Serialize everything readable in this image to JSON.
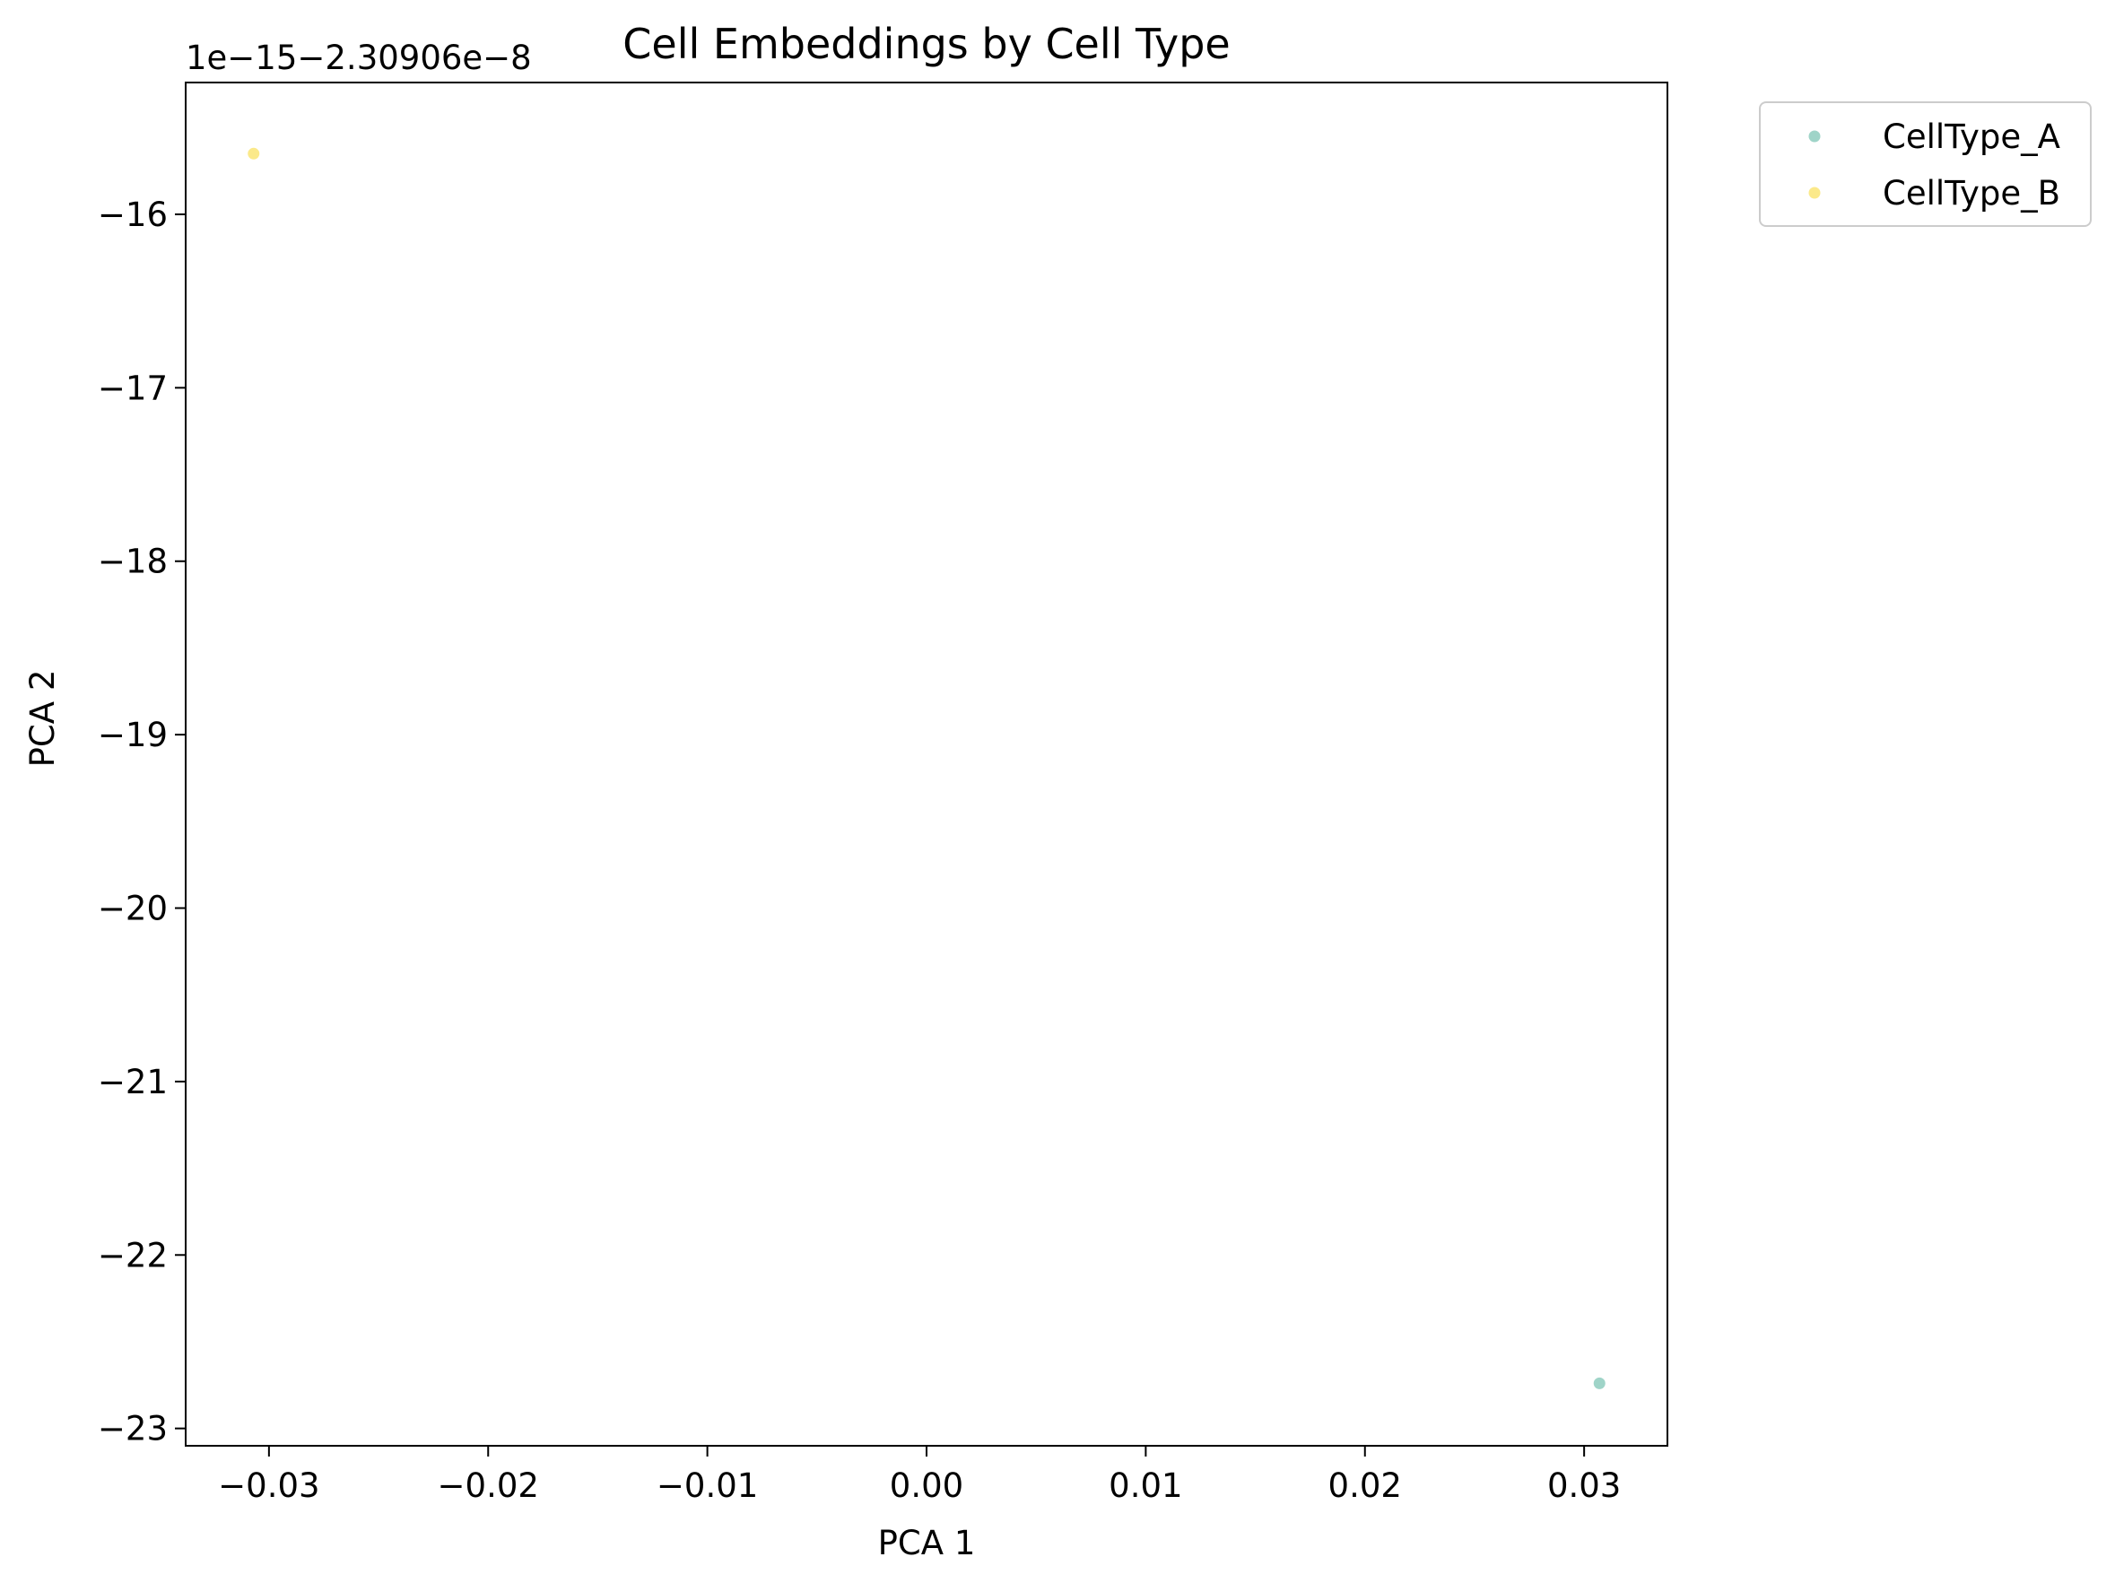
{
  "chart_data": {
    "type": "scatter",
    "title": "Cell Embeddings by Cell Type",
    "xlabel": "PCA 1",
    "ylabel": "PCA 2",
    "y_offset_text": "1e−15−2.30906e−8",
    "xlim": [
      -0.0338,
      0.0338
    ],
    "ylim": [
      -23.1,
      -15.24
    ],
    "x_ticks": [
      -0.03,
      -0.02,
      -0.01,
      0.0,
      0.01,
      0.02,
      0.03
    ],
    "x_tick_labels": [
      "−0.03",
      "−0.02",
      "−0.01",
      "0.00",
      "0.01",
      "0.02",
      "0.03"
    ],
    "y_ticks": [
      -16,
      -17,
      -18,
      -19,
      -20,
      -21,
      -22,
      -23
    ],
    "y_tick_labels": [
      "−16",
      "−17",
      "−18",
      "−19",
      "−20",
      "−21",
      "−22",
      "−23"
    ],
    "grid": false,
    "legend_position": "outside-top-right",
    "series": [
      {
        "name": "CellType_A",
        "color": "#9fd4c8",
        "points": [
          {
            "x": 0.0307,
            "y": -22.74
          }
        ]
      },
      {
        "name": "CellType_B",
        "color": "#fbe98a",
        "points": [
          {
            "x": -0.0307,
            "y": -15.65
          }
        ]
      }
    ]
  }
}
